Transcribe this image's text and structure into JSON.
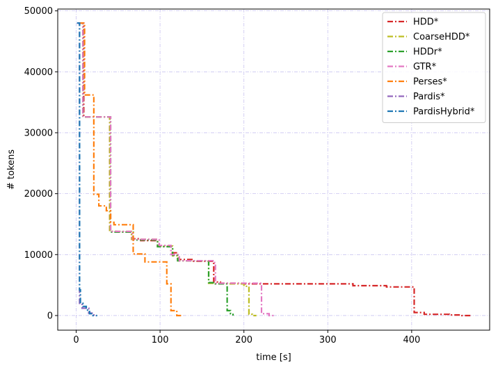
{
  "chart_data": {
    "type": "line",
    "xlabel": "time [s]",
    "ylabel": "# tokens",
    "xlim": [
      -22,
      493
    ],
    "ylim": [
      -2400,
      50300
    ],
    "xticks": [
      0,
      100,
      200,
      300,
      400
    ],
    "yticks": [
      0,
      10000,
      20000,
      30000,
      40000,
      50000
    ],
    "grid": true,
    "grid_style": "dash-dot lavender",
    "legend_position": "top-right",
    "line_style": "dash-dot step",
    "series": [
      {
        "name": "HDD*",
        "color": "#d62728",
        "points": [
          [
            3,
            48000
          ],
          [
            9,
            48000
          ],
          [
            9,
            32600
          ],
          [
            40,
            32600
          ],
          [
            40,
            13800
          ],
          [
            48,
            13800
          ],
          [
            48,
            13700
          ],
          [
            66,
            13700
          ],
          [
            66,
            12600
          ],
          [
            77,
            12600
          ],
          [
            77,
            12300
          ],
          [
            97,
            12300
          ],
          [
            97,
            11300
          ],
          [
            113,
            11300
          ],
          [
            113,
            10300
          ],
          [
            121,
            10300
          ],
          [
            121,
            9200
          ],
          [
            140,
            9200
          ],
          [
            140,
            8900
          ],
          [
            164,
            8900
          ],
          [
            164,
            5500
          ],
          [
            172,
            5500
          ],
          [
            172,
            5300
          ],
          [
            197,
            5300
          ],
          [
            197,
            5200
          ],
          [
            330,
            5200
          ],
          [
            330,
            4900
          ],
          [
            370,
            4900
          ],
          [
            370,
            4700
          ],
          [
            403,
            4700
          ],
          [
            403,
            500
          ],
          [
            415,
            500
          ],
          [
            415,
            200
          ],
          [
            445,
            200
          ],
          [
            445,
            100
          ],
          [
            460,
            100
          ],
          [
            460,
            0
          ],
          [
            470,
            0
          ]
        ]
      },
      {
        "name": "CoarseHDD*",
        "color": "#bcbd22",
        "points": [
          [
            3,
            48000
          ],
          [
            8,
            48000
          ],
          [
            8,
            32600
          ],
          [
            40,
            32600
          ],
          [
            40,
            13800
          ],
          [
            66,
            13800
          ],
          [
            66,
            12500
          ],
          [
            97,
            12500
          ],
          [
            97,
            11400
          ],
          [
            115,
            11400
          ],
          [
            115,
            9800
          ],
          [
            122,
            9800
          ],
          [
            122,
            9000
          ],
          [
            158,
            9000
          ],
          [
            158,
            5300
          ],
          [
            165,
            5300
          ],
          [
            165,
            5200
          ],
          [
            200,
            5200
          ],
          [
            200,
            4800
          ],
          [
            206,
            4800
          ],
          [
            206,
            200
          ],
          [
            210,
            200
          ],
          [
            210,
            0
          ],
          [
            215,
            0
          ]
        ]
      },
      {
        "name": "HDDr*",
        "color": "#2ca02c",
        "points": [
          [
            3,
            48000
          ],
          [
            8,
            48000
          ],
          [
            8,
            32600
          ],
          [
            41,
            32600
          ],
          [
            41,
            13700
          ],
          [
            68,
            13700
          ],
          [
            68,
            12400
          ],
          [
            97,
            12400
          ],
          [
            97,
            11300
          ],
          [
            115,
            11300
          ],
          [
            115,
            9900
          ],
          [
            121,
            9900
          ],
          [
            121,
            9000
          ],
          [
            158,
            9000
          ],
          [
            158,
            5400
          ],
          [
            166,
            5400
          ],
          [
            166,
            5200
          ],
          [
            180,
            5200
          ],
          [
            180,
            800
          ],
          [
            184,
            800
          ],
          [
            184,
            300
          ],
          [
            187,
            300
          ],
          [
            187,
            0
          ]
        ]
      },
      {
        "name": "GTR*",
        "color": "#e377c2",
        "points": [
          [
            3,
            48000
          ],
          [
            8,
            48000
          ],
          [
            8,
            32600
          ],
          [
            41,
            32600
          ],
          [
            41,
            13800
          ],
          [
            67,
            13800
          ],
          [
            67,
            12500
          ],
          [
            99,
            12500
          ],
          [
            99,
            11500
          ],
          [
            113,
            11500
          ],
          [
            113,
            10000
          ],
          [
            123,
            10000
          ],
          [
            123,
            9000
          ],
          [
            163,
            9000
          ],
          [
            163,
            8700
          ],
          [
            166,
            8700
          ],
          [
            166,
            5300
          ],
          [
            221,
            5300
          ],
          [
            221,
            300
          ],
          [
            230,
            300
          ],
          [
            230,
            0
          ],
          [
            236,
            0
          ]
        ]
      },
      {
        "name": "Perses*",
        "color": "#ff7f0e",
        "points": [
          [
            3,
            48000
          ],
          [
            10,
            48000
          ],
          [
            10,
            36200
          ],
          [
            21,
            36200
          ],
          [
            21,
            19900
          ],
          [
            27,
            19900
          ],
          [
            27,
            18000
          ],
          [
            36,
            18000
          ],
          [
            36,
            17200
          ],
          [
            41,
            17200
          ],
          [
            41,
            15300
          ],
          [
            45,
            15300
          ],
          [
            45,
            14900
          ],
          [
            68,
            14900
          ],
          [
            68,
            10100
          ],
          [
            82,
            10100
          ],
          [
            82,
            8800
          ],
          [
            108,
            8800
          ],
          [
            108,
            5200
          ],
          [
            113,
            5200
          ],
          [
            113,
            800
          ],
          [
            120,
            800
          ],
          [
            120,
            0
          ],
          [
            125,
            0
          ]
        ]
      },
      {
        "name": "Pardis*",
        "color": "#9467bd",
        "points": [
          [
            1,
            48000
          ],
          [
            4,
            48000
          ],
          [
            4,
            2000
          ],
          [
            7,
            2000
          ],
          [
            7,
            1200
          ],
          [
            15,
            1200
          ],
          [
            15,
            400
          ],
          [
            21,
            400
          ],
          [
            21,
            0
          ],
          [
            24,
            0
          ]
        ]
      },
      {
        "name": "PardisHybrid*",
        "color": "#1f77b4",
        "points": [
          [
            1,
            48000
          ],
          [
            4,
            48000
          ],
          [
            4,
            4200
          ],
          [
            5,
            4200
          ],
          [
            5,
            2000
          ],
          [
            8,
            2000
          ],
          [
            8,
            1500
          ],
          [
            12,
            1500
          ],
          [
            12,
            900
          ],
          [
            16,
            900
          ],
          [
            16,
            300
          ],
          [
            20,
            300
          ],
          [
            20,
            0
          ],
          [
            25,
            0
          ]
        ]
      }
    ]
  }
}
